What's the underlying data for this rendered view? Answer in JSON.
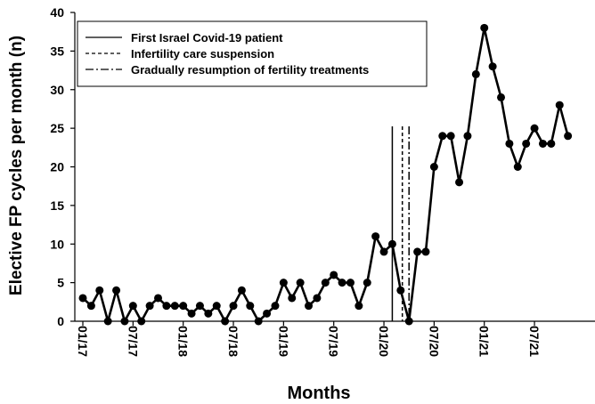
{
  "chart_data": {
    "type": "line",
    "title": "",
    "xlabel": "Months",
    "ylabel": "Elective FP cycles per month (n)",
    "ylim": [
      0,
      40
    ],
    "yticks": [
      0,
      5,
      10,
      15,
      20,
      25,
      30,
      35,
      40
    ],
    "grid": false,
    "legend_position": "top-left",
    "categories": [
      "01/17",
      "02/17",
      "03/17",
      "04/17",
      "05/17",
      "06/17",
      "07/17",
      "08/17",
      "09/17",
      "10/17",
      "11/17",
      "12/17",
      "01/18",
      "02/18",
      "03/18",
      "04/18",
      "05/18",
      "06/18",
      "07/18",
      "08/18",
      "09/18",
      "10/18",
      "11/18",
      "12/18",
      "01/19",
      "02/19",
      "03/19",
      "04/19",
      "05/19",
      "06/19",
      "07/19",
      "08/19",
      "09/19",
      "10/19",
      "11/19",
      "12/19",
      "01/20",
      "02/20",
      "03/20",
      "04/20",
      "05/20",
      "06/20",
      "07/20",
      "08/20",
      "09/20",
      "10/20",
      "11/20",
      "12/20",
      "01/21",
      "02/21",
      "03/21",
      "04/21",
      "05/21",
      "06/21",
      "07/21",
      "08/21",
      "09/21",
      "10/21",
      "11/21"
    ],
    "x_tick_labels": [
      "01/17",
      "07/17",
      "01/18",
      "07/18",
      "01/19",
      "07/19",
      "01/20",
      "07/20",
      "01/21",
      "07/21"
    ],
    "series": [
      {
        "values": [
          3,
          2,
          4,
          0,
          4,
          0,
          2,
          0,
          2,
          3,
          2,
          2,
          2,
          1,
          2,
          1,
          2,
          0,
          2,
          4,
          2,
          0,
          1,
          2,
          5,
          3,
          5,
          2,
          3,
          5,
          6,
          5,
          5,
          2,
          5,
          11,
          9,
          10,
          4,
          0,
          9,
          9,
          20,
          24,
          24,
          18,
          24,
          32,
          38,
          33,
          29,
          23,
          20,
          23,
          25,
          23,
          23,
          28,
          24
        ],
        "color": "#000000"
      }
    ],
    "events": [
      {
        "label": "First Israel Covid-19 patient",
        "month_index": 37.0,
        "style": "solid"
      },
      {
        "label": "Infertility care suspension",
        "month_index": 38.2,
        "style": "dashed"
      },
      {
        "label": "Gradually resumption of fertility treatments",
        "month_index": 39.0,
        "style": "dashdot"
      }
    ]
  }
}
